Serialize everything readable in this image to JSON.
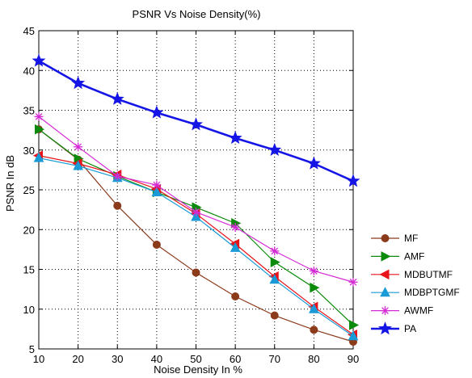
{
  "chart_data": {
    "type": "line",
    "title": "PSNR Vs Noise Density(%)",
    "xlabel": "Noise Density In %",
    "ylabel": "PSNR In dB",
    "x": [
      10,
      20,
      30,
      40,
      50,
      60,
      70,
      80,
      90
    ],
    "xlim": [
      10,
      90
    ],
    "ylim": [
      5,
      45
    ],
    "xticks": [
      10,
      20,
      30,
      40,
      50,
      60,
      70,
      80,
      90
    ],
    "yticks": [
      5,
      10,
      15,
      20,
      25,
      30,
      35,
      40,
      45
    ],
    "grid": true,
    "legend_position": "outside-right-bottom",
    "series": [
      {
        "name": "MF",
        "color": "#8b3a1a",
        "marker": "circle",
        "values": [
          32.6,
          28.8,
          23.0,
          18.1,
          14.6,
          11.6,
          9.2,
          7.4,
          5.9
        ]
      },
      {
        "name": "AMF",
        "color": "#0b8a0b",
        "marker": "triangle-right",
        "values": [
          32.6,
          28.9,
          26.7,
          24.7,
          22.8,
          20.8,
          15.9,
          12.7,
          8.0
        ]
      },
      {
        "name": "MDBUTMF",
        "color": "#e8141a",
        "marker": "triangle-left",
        "values": [
          29.3,
          28.3,
          26.9,
          25.1,
          22.0,
          18.2,
          14.1,
          10.3,
          6.8
        ]
      },
      {
        "name": "MDBPTGMF",
        "color": "#1a9ad6",
        "marker": "triangle-up",
        "values": [
          29.0,
          28.0,
          26.5,
          24.7,
          21.6,
          17.7,
          13.7,
          10.0,
          6.6
        ]
      },
      {
        "name": "AWMF",
        "color": "#d42ad4",
        "marker": "asterisk",
        "values": [
          34.2,
          30.4,
          26.7,
          25.6,
          22.2,
          20.3,
          17.3,
          14.8,
          13.4
        ]
      },
      {
        "name": "PA",
        "color": "#1515e6",
        "marker": "star",
        "values": [
          41.2,
          38.4,
          36.4,
          34.7,
          33.2,
          31.5,
          30.0,
          28.3,
          26.1
        ]
      }
    ]
  }
}
